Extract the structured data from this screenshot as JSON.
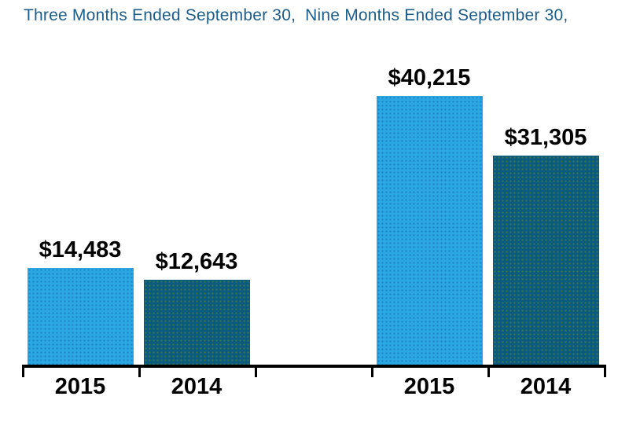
{
  "colors": {
    "background": "#FFFFFF",
    "title_text": "#1B5E8B",
    "value_text": "#000000",
    "axis": "#000000",
    "bar_2015": "#2BA7E2",
    "bar_2015_dot": "#1E82C8",
    "bar_2014": "#0B5A80",
    "bar_2014_dot": "#3E7B44"
  },
  "chart_data": {
    "type": "bar",
    "title": "Three Months Ended September 30,  Nine Months Ended September 30,",
    "ylim": [
      0,
      40215
    ],
    "grid": false,
    "legend": false,
    "value_prefix": "$",
    "groups": [
      {
        "key": "three-months",
        "label": "Three Months Ended September 30,",
        "bars": [
          {
            "category": "2015",
            "value": 14483,
            "label": "$14,483",
            "color_key": "bar_2015"
          },
          {
            "category": "2014",
            "value": 12643,
            "label": "$12,643",
            "color_key": "bar_2014"
          }
        ]
      },
      {
        "key": "nine-months",
        "label": "Nine Months Ended September 30,",
        "bars": [
          {
            "category": "2015",
            "value": 40215,
            "label": "$40,215",
            "color_key": "bar_2015"
          },
          {
            "category": "2014",
            "value": 31305,
            "label": "$31,305",
            "color_key": "bar_2014"
          }
        ]
      }
    ]
  }
}
